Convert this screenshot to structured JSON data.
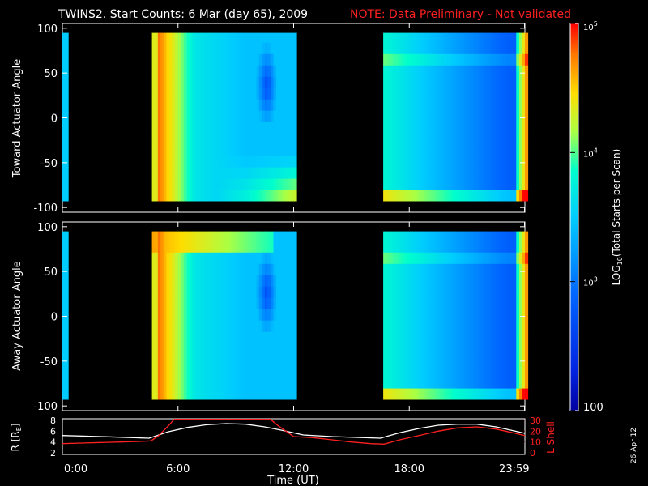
{
  "title": {
    "main": "TWINS2. Start Counts:  6 Mar (day  65), 2009",
    "note": "NOTE: Data Preliminary - Not validated",
    "note_color": "#ff2020"
  },
  "stamp": "26 Apr 12",
  "colorbar": {
    "label_main": "LOG",
    "label_sub": "10",
    "label_rest": "(Total Starts per Scan)",
    "ticks": [
      {
        "value": 100,
        "label": "100"
      },
      {
        "value": 1000,
        "label": "10",
        "exp": "3"
      },
      {
        "value": 10000,
        "label": "10",
        "exp": "4"
      },
      {
        "value": 100000,
        "label": "10",
        "exp": "5"
      }
    ],
    "range": [
      100,
      100000
    ],
    "scale": "log",
    "colors": [
      "#0000a0",
      "#0033ff",
      "#00aaff",
      "#00ffee",
      "#ffee00",
      "#ff8800",
      "#ff0000"
    ]
  },
  "chart_data": [
    {
      "type": "heatmap",
      "ylabel": "Toward Actuator Angle",
      "ylim": [
        -100,
        100
      ],
      "yticks": [
        100,
        50,
        0,
        -50,
        -100
      ],
      "xlim_hours": [
        0,
        24
      ],
      "data_intervals_hours": [
        [
          0,
          0.25
        ],
        [
          4.65,
          12.1
        ],
        [
          16.7,
          24
        ]
      ],
      "angle_range": [
        -88,
        90
      ],
      "description_levels": "high counts near 4.7-5.5 UT; low counts 10-11 UT near angle 20; high counts at low angles after 11 UT"
    },
    {
      "type": "heatmap",
      "ylabel": "Away Actuator Angle",
      "ylim": [
        -100,
        100
      ],
      "yticks": [
        100,
        50,
        0,
        -50,
        -100
      ],
      "xlim_hours": [
        0,
        24
      ],
      "data_intervals_hours": [
        [
          0,
          0.25
        ],
        [
          4.65,
          12.1
        ],
        [
          16.7,
          24
        ]
      ],
      "angle_range": [
        -88,
        90
      ]
    },
    {
      "type": "line",
      "ylabel_left": "R [R",
      "ylabel_left_sub": "E",
      "ylabel_left_close": "]",
      "ylabel_right": "L Shell",
      "left_ticks": [
        2,
        4,
        6,
        8
      ],
      "left_ylim": [
        2,
        8
      ],
      "right_ticks": [
        0,
        10,
        20,
        30
      ],
      "right_ylim": [
        0,
        30
      ],
      "xlabel": "Time (UT)",
      "xticks": [
        {
          "hour": 0,
          "label": "0:00"
        },
        {
          "hour": 6,
          "label": "6:00"
        },
        {
          "hour": 12,
          "label": "12:00"
        },
        {
          "hour": 18,
          "label": "18:00"
        },
        {
          "hour": 23.98,
          "label": "23:59"
        }
      ],
      "series": [
        {
          "name": "R",
          "color": "#ffffff",
          "axis": "left",
          "x": [
            0,
            2,
            4.5,
            5.5,
            6.5,
            7.5,
            8.5,
            9.5,
            10.5,
            11.5,
            12.5,
            14,
            16.5,
            17.5,
            18.5,
            19.5,
            20.5,
            21.5,
            22.5,
            23.5,
            24
          ],
          "y": [
            5.2,
            5.0,
            4.7,
            5.9,
            6.7,
            7.2,
            7.4,
            7.3,
            6.8,
            6.1,
            5.3,
            5.0,
            4.7,
            5.7,
            6.5,
            7.1,
            7.3,
            7.3,
            6.8,
            6.0,
            5.6
          ]
        },
        {
          "name": "L Shell",
          "color": "#ff2020",
          "axis": "right",
          "x": [
            0,
            1,
            2,
            3,
            4,
            4.6,
            5.0,
            5.5,
            5.8,
            10.8,
            11.2,
            11.6,
            12.0,
            13,
            14,
            15,
            16,
            16.7,
            17.5,
            18.5,
            19.5,
            20.5,
            21.5,
            22.5,
            23.5,
            24
          ],
          "y": [
            8.5,
            9,
            9.5,
            10,
            10.5,
            11,
            16,
            25,
            31,
            31,
            25,
            20,
            15,
            14,
            12,
            10,
            8.5,
            8,
            12,
            16,
            20,
            23,
            24,
            22,
            18,
            16
          ]
        }
      ]
    }
  ]
}
